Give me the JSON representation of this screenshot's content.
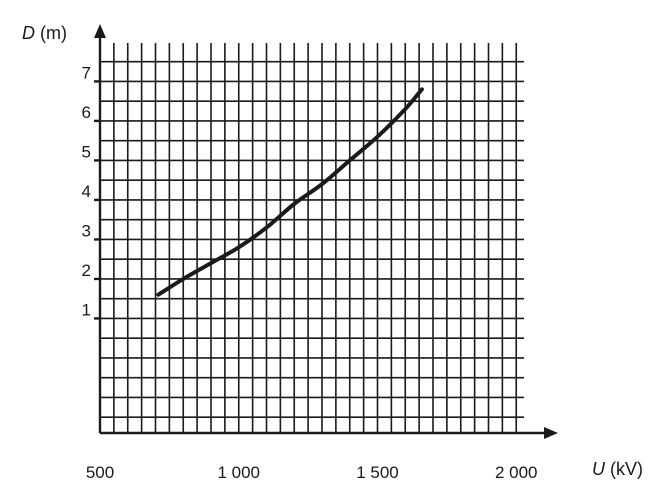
{
  "chart_data": {
    "type": "line",
    "title": "",
    "xlabel_var": "U",
    "xlabel_unit": " (kV)",
    "ylabel_var": "D",
    "ylabel_unit": " (m)",
    "xlim": [
      500,
      2100
    ],
    "ylim": [
      -1.9,
      8.2
    ],
    "x_ticks": [
      {
        "value": 500,
        "label": "500"
      },
      {
        "value": 1000,
        "label": "1 000"
      },
      {
        "value": 1500,
        "label": "1 500"
      },
      {
        "value": 2000,
        "label": "2 000"
      }
    ],
    "y_ticks": [
      {
        "value": 1,
        "label": "1"
      },
      {
        "value": 2,
        "label": "2"
      },
      {
        "value": 3,
        "label": "3"
      },
      {
        "value": 4,
        "label": "4"
      },
      {
        "value": 5,
        "label": "5"
      },
      {
        "value": 6,
        "label": "6"
      },
      {
        "value": 7,
        "label": "7"
      }
    ],
    "grid": true,
    "series": [
      {
        "x": [
          710,
          800,
          900,
          1000,
          1100,
          1200,
          1300,
          1400,
          1500,
          1600,
          1660
        ],
        "y": [
          1.6,
          2.0,
          2.4,
          2.8,
          3.3,
          3.9,
          4.4,
          5.0,
          5.6,
          6.3,
          6.8
        ]
      }
    ]
  }
}
